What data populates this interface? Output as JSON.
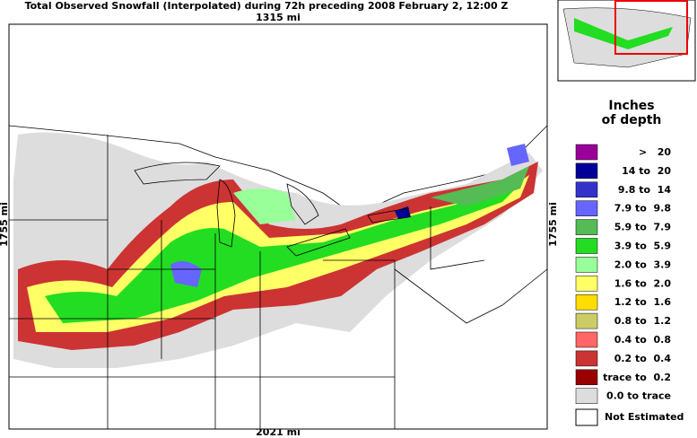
{
  "header": {
    "title": "Total Observed Snowfall (Interpolated) during 72h preceding 2008 February 2, 12:00 Z"
  },
  "map": {
    "top_scale": "1315 mi",
    "bottom_scale": "2021 mi",
    "left_scale": "1755 mi",
    "right_scale": "1755 mi"
  },
  "legend": {
    "title": [
      "Inches",
      "of depth"
    ],
    "items": [
      {
        "label": ">   20",
        "color": "#990099"
      },
      {
        "label": "14 to  20",
        "color": "#000099"
      },
      {
        "label": "9.8 to  14",
        "color": "#3333cc"
      },
      {
        "label": "7.9 to  9.8",
        "color": "#6666ff"
      },
      {
        "label": "5.9 to  7.9",
        "color": "#55bb55"
      },
      {
        "label": "3.9 to  5.9",
        "color": "#22dd22"
      },
      {
        "label": "2.0 to  3.9",
        "color": "#99ff99"
      },
      {
        "label": "1.6 to  2.0",
        "color": "#ffff66"
      },
      {
        "label": "1.2 to  1.6",
        "color": "#ffdd00"
      },
      {
        "label": "0.8 to  1.2",
        "color": "#cccc66"
      },
      {
        "label": "0.4 to  0.8",
        "color": "#ff6666"
      },
      {
        "label": "0.2 to  0.4",
        "color": "#cc3333"
      },
      {
        "label": "trace to  0.2",
        "color": "#990000"
      },
      {
        "label": "0.0 to trace",
        "color": "#dddddd"
      }
    ],
    "not_estimated": {
      "label": "Not Estimated",
      "color": "#ffffff"
    }
  }
}
